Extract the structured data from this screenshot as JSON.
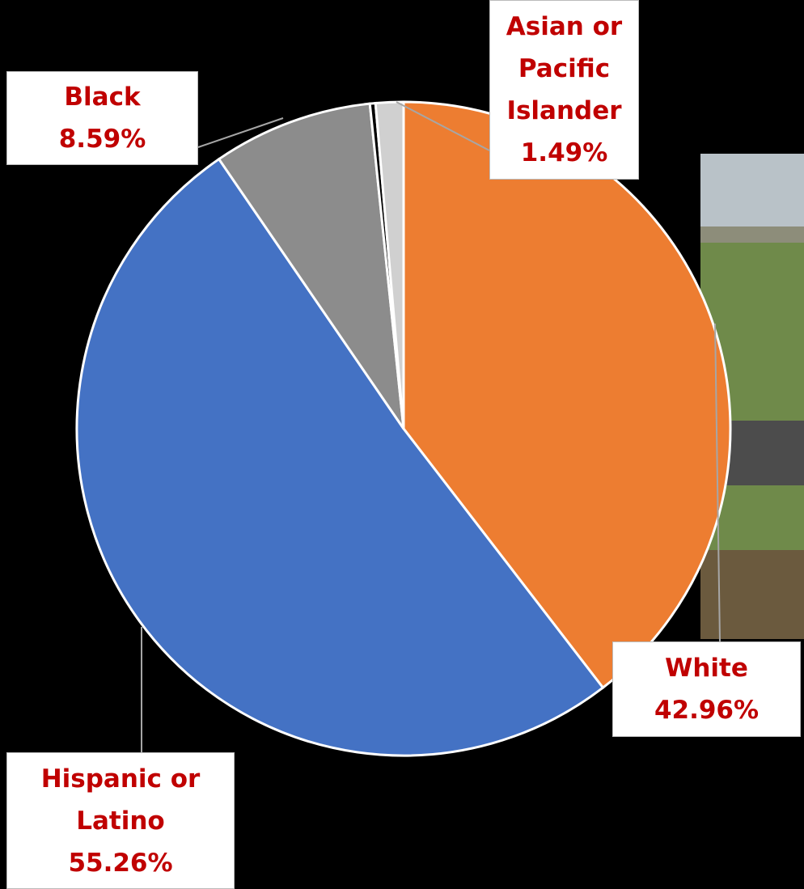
{
  "chart_data": {
    "type": "pie",
    "categories": [
      "White",
      "Hispanic or\nLatino",
      "Black",
      null,
      "Asian or\nPacific\nIslander"
    ],
    "values": [
      42.96,
      55.26,
      8.59,
      0.3,
      1.49
    ],
    "value_labels": [
      "42.96%",
      "55.26%",
      "8.59%",
      null,
      "1.49%"
    ],
    "colors": [
      "#ed7d31",
      "#4472c4",
      "#8c8c8c",
      "#000000",
      "#d0d0d0"
    ]
  }
}
